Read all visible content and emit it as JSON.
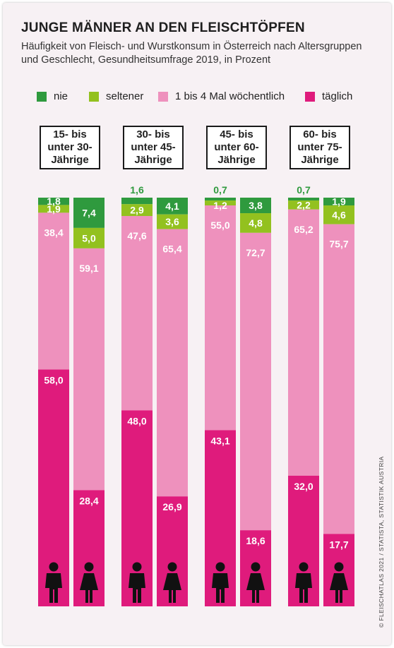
{
  "title": "JUNGE MÄNNER AN DEN FLEISCHTÖPFEN",
  "subtitle": "Häufigkeit von Fleisch- und Wurstkonsum in Österreich nach Altersgruppen und Geschlecht, Gesundheitsumfrage 2019, in Prozent",
  "credit": "© FLEISCHATLAS 2021 / STATISTA, STATISTIK AUSTRIA",
  "colors": {
    "nie": "#2f9a3e",
    "seltener": "#93c11f",
    "woechentlich": "#ee91bd",
    "taeglich": "#df1b7c",
    "outer_label": "#2f9a3e",
    "silhouette": "#111111",
    "background": "#f7f1f4"
  },
  "chart_data": {
    "type": "bar",
    "stacked": true,
    "orientation": "vertical",
    "title": "JUNGE MÄNNER AN DEN FLEISCHTÖPFEN",
    "unit": "Prozent",
    "ylim": [
      0,
      100
    ],
    "legend_position": "top",
    "grid": false,
    "series_names": [
      "nie",
      "seltener",
      "1 bis 4 Mal wöchentlich",
      "täglich"
    ],
    "groups": [
      {
        "label": "15- bis\nunter 30-\nJährige",
        "bars": [
          {
            "sex": "male",
            "icon": "male-icon",
            "values": [
              1.8,
              1.9,
              38.4,
              58.0
            ],
            "labels": [
              "1,8",
              "1,9",
              "38,4",
              "58,0"
            ]
          },
          {
            "sex": "female",
            "icon": "female-icon",
            "values": [
              7.4,
              5.0,
              59.1,
              28.4
            ],
            "labels": [
              "7,4",
              "5,0",
              "59,1",
              "28,4"
            ]
          }
        ]
      },
      {
        "label": "30- bis\nunter 45-\nJährige",
        "bars": [
          {
            "sex": "male",
            "icon": "male-icon",
            "values": [
              1.6,
              2.9,
              47.6,
              48.0
            ],
            "labels": [
              "1,6",
              "2,9",
              "47,6",
              "48,0"
            ]
          },
          {
            "sex": "female",
            "icon": "female-icon",
            "values": [
              4.1,
              3.6,
              65.4,
              26.9
            ],
            "labels": [
              "4,1",
              "3,6",
              "65,4",
              "26,9"
            ]
          }
        ]
      },
      {
        "label": "45- bis\nunter 60-\nJährige",
        "bars": [
          {
            "sex": "male",
            "icon": "male-icon",
            "values": [
              0.7,
              1.2,
              55.0,
              43.1
            ],
            "labels": [
              "0,7",
              "1,2",
              "55,0",
              "43,1"
            ]
          },
          {
            "sex": "female",
            "icon": "female-icon",
            "values": [
              3.8,
              4.8,
              72.7,
              18.6
            ],
            "labels": [
              "3,8",
              "4,8",
              "72,7",
              "18,6"
            ]
          }
        ]
      },
      {
        "label": "60- bis\nunter 75-\nJährige",
        "bars": [
          {
            "sex": "male",
            "icon": "male-icon",
            "values": [
              0.7,
              2.2,
              65.2,
              32.0
            ],
            "labels": [
              "0,7",
              "2,2",
              "65,2",
              "32,0"
            ]
          },
          {
            "sex": "female",
            "icon": "female-icon",
            "values": [
              1.9,
              4.6,
              75.7,
              17.7
            ],
            "labels": [
              "1,9",
              "4,6",
              "75,7",
              "17,7"
            ]
          }
        ]
      }
    ]
  }
}
